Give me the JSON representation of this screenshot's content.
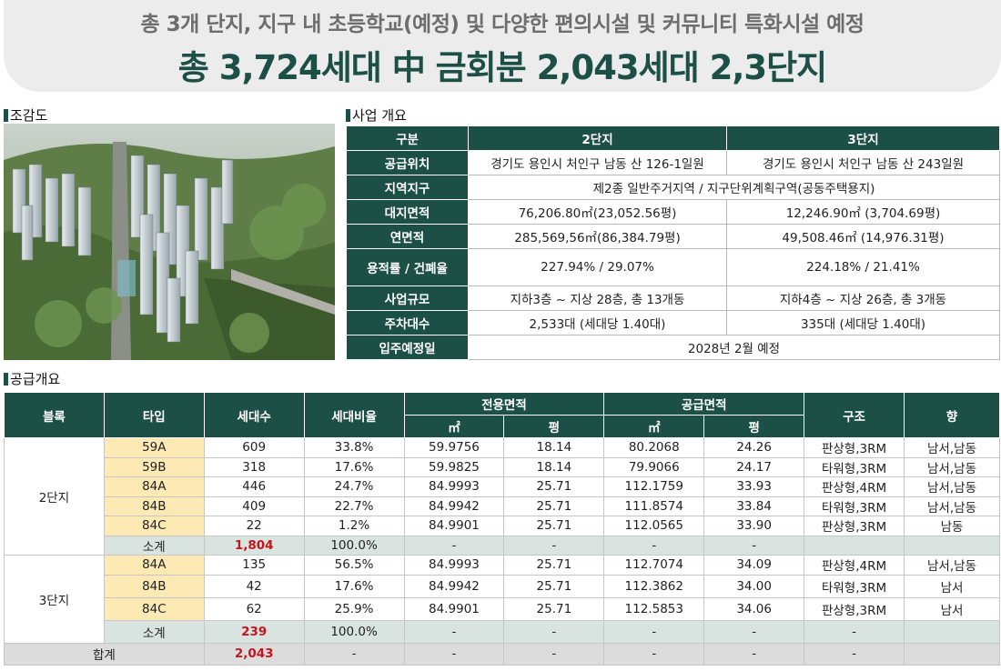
{
  "header": {
    "subtitle": "총 3개 단지, 지구 내 초등학교(예정) 및 다양한 편의시설 및 커뮤니티 특화시설 예정",
    "title": "총 3,724세대 中 금회분 2,043세대 2,3단지"
  },
  "sections": {
    "aerial": "조감도",
    "overview": "사업 개요",
    "supply": "공급개요"
  },
  "overview": {
    "head": [
      "구분",
      "2단지",
      "3단지"
    ],
    "rows": [
      {
        "label": "공급위치",
        "c2": "경기도 용인시 처인구 남동 산 126-1일원",
        "c3": "경기도 용인시 처인구 남동 산 243일원"
      },
      {
        "label": "지역지구",
        "merged": "제2종 일반주거지역 / 지구단위계획구역(공동주택용지)"
      },
      {
        "label": "대지면적",
        "c2": "76,206.80㎡(23,052.56평)",
        "c3": "12,246.90㎡ (3,704.69평)"
      },
      {
        "label": "연면적",
        "c2": "285,569,56㎡(86,384.79평)",
        "c3": "49,508.46㎡  (14,976.31평)"
      },
      {
        "label": "용적률 / 건폐율",
        "c2": "227.94% / 29.07%",
        "c3": "224.18% / 21.41%"
      },
      {
        "label": "사업규모",
        "c2": "지하3층 ~ 지상 28층, 총 13개동",
        "c3": "지하4층 ~ 지상 26층, 총 3개동"
      },
      {
        "label": "주차대수",
        "c2": "2,533대 (세대당 1.40대)",
        "c3": "335대 (세대당 1.40대)"
      },
      {
        "label": "입주예정일",
        "merged": "2028년 2월 예정"
      }
    ]
  },
  "supply": {
    "head": {
      "block": "블록",
      "type": "타입",
      "units": "세대수",
      "ratio": "세대비율",
      "exclusive": "전용면적",
      "supply_area": "공급면적",
      "m2": "㎡",
      "pyeong": "평",
      "structure": "구조",
      "direction": "향"
    },
    "block2": {
      "name": "2단지",
      "rows": [
        [
          "59A",
          "609",
          "33.8%",
          "59.9756",
          "18.14",
          "80.2068",
          "24.26",
          "판상형,3RM",
          "남서,남동"
        ],
        [
          "59B",
          "318",
          "17.6%",
          "59.9825",
          "18.14",
          "79.9066",
          "24.17",
          "타워형,3RM",
          "남서,남동"
        ],
        [
          "84A",
          "446",
          "24.7%",
          "84.9993",
          "25.71",
          "112.1759",
          "33.93",
          "판상형,4RM",
          "남서,남동"
        ],
        [
          "84B",
          "409",
          "22.7%",
          "84.9942",
          "25.71",
          "111.8574",
          "33.84",
          "타워형,3RM",
          "남서,남동"
        ],
        [
          "84C",
          "22",
          "1.2%",
          "84.9901",
          "25.71",
          "112.0565",
          "33.90",
          "판상형,3RM",
          "남동"
        ]
      ],
      "subtotal": [
        "소계",
        "1,804",
        "100.0%",
        "-",
        "-",
        "-",
        "-",
        "",
        ""
      ]
    },
    "block3": {
      "name": "3단지",
      "rows": [
        [
          "84A",
          "135",
          "56.5%",
          "84.9993",
          "25.71",
          "112.7074",
          "34.09",
          "판상형,4RM",
          "남서,남동"
        ],
        [
          "84B",
          "42",
          "17.6%",
          "84.9942",
          "25.71",
          "112.3862",
          "34.00",
          "타워형,3RM",
          "남서"
        ],
        [
          "84C",
          "62",
          "25.9%",
          "84.9901",
          "25.71",
          "112.5853",
          "34.06",
          "판상형,3RM",
          "남서"
        ]
      ],
      "subtotal": [
        "소계",
        "239",
        "100.0%",
        "-",
        "-",
        "-",
        "-",
        "-",
        ""
      ]
    },
    "total": [
      "합계",
      "2,043",
      "-",
      "-",
      "-",
      "-",
      "-",
      "-",
      ""
    ]
  },
  "colors": {
    "brand_green": "#1c4f45",
    "type_cell": "#fde9b4",
    "subtotal_row": "#d9e3e0",
    "total_row": "#dcdcdc",
    "accent_red": "#c4161c"
  }
}
